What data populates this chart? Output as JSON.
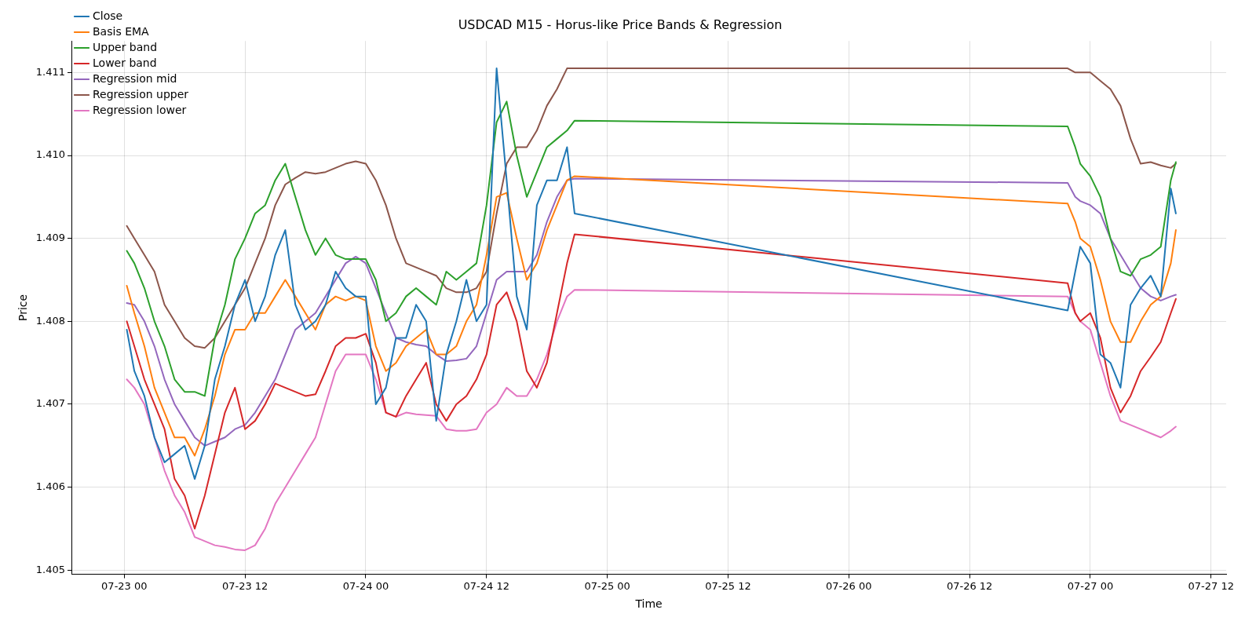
{
  "chart_data": {
    "type": "line",
    "title": "USDCAD M15 - Horus-like Price Bands & Regression",
    "xlabel": "Time",
    "ylabel": "Price",
    "x": [
      "--07-23T00:15",
      "--07-23T01:00",
      "--07-23T02:00",
      "--07-23T03:00",
      "--07-23T04:00",
      "--07-23T05:00",
      "--07-23T06:00",
      "--07-23T07:00",
      "--07-23T08:00",
      "--07-23T09:00",
      "--07-23T10:00",
      "--07-23T11:00",
      "--07-23T12:00",
      "--07-23T13:00",
      "--07-23T14:00",
      "--07-23T15:00",
      "--07-23T16:00",
      "--07-23T17:00",
      "--07-23T18:00",
      "--07-23T19:00",
      "--07-23T20:00",
      "--07-23T21:00",
      "--07-23T22:00",
      "--07-23T23:00",
      "--07-24T00:00",
      "--07-24T01:00",
      "--07-24T02:00",
      "--07-24T03:00",
      "--07-24T04:00",
      "--07-24T05:00",
      "--07-24T06:00",
      "--07-24T07:00",
      "--07-24T08:00",
      "--07-24T09:00",
      "--07-24T10:00",
      "--07-24T11:00",
      "--07-24T12:00",
      "--07-24T13:00",
      "--07-24T14:00",
      "--07-24T15:00",
      "--07-24T16:00",
      "--07-24T17:00",
      "--07-24T18:00",
      "--07-24T19:00",
      "--07-24T20:00",
      "--07-24T20:45",
      "--07-26T21:45",
      "--07-26T22:30",
      "--07-26T23:00",
      "--07-27T00:00",
      "--07-27T01:00",
      "--07-27T02:00",
      "--07-27T03:00",
      "--07-27T04:00",
      "--07-27T05:00",
      "--07-27T06:00",
      "--07-27T07:00",
      "--07-27T08:00",
      "--07-27T08:30"
    ],
    "series": [
      {
        "name": "Close",
        "color": "#1f77b4",
        "values": [
          1.4079,
          1.4074,
          1.4071,
          1.4066,
          1.4063,
          1.4064,
          1.4065,
          1.4061,
          1.4065,
          1.4073,
          1.4077,
          1.4082,
          1.4085,
          1.408,
          1.4083,
          1.4088,
          1.4091,
          1.4082,
          1.4079,
          1.408,
          1.4082,
          1.4086,
          1.4084,
          1.4083,
          1.4083,
          1.407,
          1.4072,
          1.4078,
          1.4078,
          1.4082,
          1.408,
          1.4068,
          1.4076,
          1.408,
          1.4085,
          1.408,
          1.4082,
          1.41105,
          1.4097,
          1.4083,
          1.4079,
          1.4094,
          1.4097,
          1.4097,
          1.4101,
          1.4093,
          1.40813,
          1.4086,
          1.4089,
          1.4087,
          1.4076,
          1.4075,
          1.4072,
          1.4082,
          1.4084,
          1.40855,
          1.4083,
          1.4096,
          1.4093
        ]
      },
      {
        "name": "Basis EMA",
        "color": "#ff7f0e",
        "values": [
          1.40843,
          1.4081,
          1.4077,
          1.4072,
          1.4069,
          1.4066,
          1.4066,
          1.40638,
          1.4067,
          1.4071,
          1.4076,
          1.4079,
          1.4079,
          1.4081,
          1.4081,
          1.4083,
          1.4085,
          1.4083,
          1.4081,
          1.4079,
          1.4082,
          1.4083,
          1.40825,
          1.4083,
          1.40825,
          1.4077,
          1.4074,
          1.4075,
          1.4077,
          1.4078,
          1.4079,
          1.4076,
          1.4076,
          1.4077,
          1.408,
          1.4082,
          1.4088,
          1.4095,
          1.40955,
          1.409,
          1.4085,
          1.4087,
          1.4091,
          1.4094,
          1.4097,
          1.40975,
          1.40942,
          1.4092,
          1.409,
          1.4089,
          1.4085,
          1.408,
          1.40775,
          1.40775,
          1.408,
          1.4082,
          1.4083,
          1.4087,
          1.4091
        ]
      },
      {
        "name": "Upper band",
        "color": "#2ca02c",
        "values": [
          1.40885,
          1.4087,
          1.4084,
          1.408,
          1.4077,
          1.4073,
          1.40715,
          1.40715,
          1.4071,
          1.4078,
          1.4082,
          1.40875,
          1.409,
          1.4093,
          1.4094,
          1.4097,
          1.4099,
          1.4095,
          1.4091,
          1.4088,
          1.409,
          1.4088,
          1.40875,
          1.40875,
          1.40875,
          1.4085,
          1.408,
          1.4081,
          1.4083,
          1.4084,
          1.4083,
          1.4082,
          1.4086,
          1.4085,
          1.4086,
          1.4087,
          1.4094,
          1.4104,
          1.41065,
          1.41,
          1.4095,
          1.4098,
          1.4101,
          1.4102,
          1.4103,
          1.41042,
          1.41035,
          1.4101,
          1.4099,
          1.40975,
          1.4095,
          1.409,
          1.4086,
          1.40855,
          1.40875,
          1.4088,
          1.4089,
          1.4097,
          1.40992
        ]
      },
      {
        "name": "Lower band",
        "color": "#d62728",
        "values": [
          1.408,
          1.4077,
          1.4073,
          1.407,
          1.4067,
          1.4061,
          1.4059,
          1.4055,
          1.4059,
          1.4064,
          1.4069,
          1.4072,
          1.4067,
          1.4068,
          1.407,
          1.40725,
          1.4072,
          1.40715,
          1.4071,
          1.40712,
          1.4074,
          1.4077,
          1.4078,
          1.4078,
          1.40785,
          1.4075,
          1.4069,
          1.40685,
          1.4071,
          1.4073,
          1.4075,
          1.407,
          1.4068,
          1.407,
          1.4071,
          1.4073,
          1.4076,
          1.4082,
          1.40835,
          1.408,
          1.4074,
          1.4072,
          1.4075,
          1.4081,
          1.4087,
          1.40905,
          1.40846,
          1.4081,
          1.408,
          1.4081,
          1.4078,
          1.4072,
          1.4069,
          1.4071,
          1.4074,
          1.40757,
          1.40775,
          1.4081,
          1.40827
        ]
      },
      {
        "name": "Regression mid",
        "color": "#9467bd",
        "values": [
          1.40822,
          1.4082,
          1.408,
          1.4077,
          1.4073,
          1.407,
          1.4068,
          1.4066,
          1.4065,
          1.40655,
          1.4066,
          1.4067,
          1.40675,
          1.4069,
          1.4071,
          1.4073,
          1.4076,
          1.4079,
          1.408,
          1.4081,
          1.4083,
          1.4085,
          1.4087,
          1.40878,
          1.4087,
          1.4084,
          1.4081,
          1.4078,
          1.40775,
          1.40772,
          1.4077,
          1.4076,
          1.40752,
          1.40753,
          1.40755,
          1.4077,
          1.4081,
          1.4085,
          1.4086,
          1.4086,
          1.4086,
          1.4088,
          1.4092,
          1.4095,
          1.4097,
          1.40972,
          1.40967,
          1.4095,
          1.40945,
          1.4094,
          1.4093,
          1.409,
          1.4088,
          1.4086,
          1.4084,
          1.4083,
          1.40825,
          1.4083,
          1.40832
        ]
      },
      {
        "name": "Regression upper",
        "color": "#8c564b",
        "values": [
          1.40915,
          1.409,
          1.4088,
          1.4086,
          1.4082,
          1.408,
          1.4078,
          1.4077,
          1.40768,
          1.4078,
          1.408,
          1.4082,
          1.4084,
          1.4087,
          1.409,
          1.4094,
          1.40965,
          1.40973,
          1.4098,
          1.40978,
          1.4098,
          1.40985,
          1.4099,
          1.40993,
          1.4099,
          1.4097,
          1.4094,
          1.409,
          1.4087,
          1.40865,
          1.4086,
          1.40855,
          1.4084,
          1.40835,
          1.40835,
          1.4084,
          1.4086,
          1.4093,
          1.4099,
          1.4101,
          1.4101,
          1.4103,
          1.4106,
          1.4108,
          1.41105,
          1.41105,
          1.41105,
          1.411,
          1.411,
          1.411,
          1.4109,
          1.4108,
          1.4106,
          1.4102,
          1.4099,
          1.40992,
          1.40988,
          1.40985,
          1.4099
        ]
      },
      {
        "name": "Regression lower",
        "color": "#e377c2",
        "values": [
          1.4073,
          1.4072,
          1.407,
          1.4066,
          1.4062,
          1.4059,
          1.4057,
          1.4054,
          1.40535,
          1.4053,
          1.40528,
          1.40525,
          1.40524,
          1.4053,
          1.4055,
          1.4058,
          1.406,
          1.4062,
          1.4064,
          1.4066,
          1.407,
          1.4074,
          1.4076,
          1.4076,
          1.4076,
          1.4073,
          1.4069,
          1.40685,
          1.4069,
          1.40688,
          1.40687,
          1.40686,
          1.4067,
          1.40668,
          1.40668,
          1.4067,
          1.4069,
          1.407,
          1.4072,
          1.4071,
          1.4071,
          1.4073,
          1.4076,
          1.408,
          1.4083,
          1.40838,
          1.4083,
          1.4081,
          1.408,
          1.4079,
          1.4075,
          1.4071,
          1.4068,
          1.40675,
          1.4067,
          1.40665,
          1.4066,
          1.40668,
          1.40673
        ]
      }
    ],
    "xlim": [
      "--07-22T18:45",
      "--07-27T13:30"
    ],
    "xticks": [
      {
        "value": "--07-23T00:00",
        "label": "07-23 00"
      },
      {
        "value": "--07-23T12:00",
        "label": "07-23 12"
      },
      {
        "value": "--07-24T00:00",
        "label": "07-24 00"
      },
      {
        "value": "--07-24T12:00",
        "label": "07-24 12"
      },
      {
        "value": "--07-25T00:00",
        "label": "07-25 00"
      },
      {
        "value": "--07-25T12:00",
        "label": "07-25 12"
      },
      {
        "value": "--07-26T00:00",
        "label": "07-26 00"
      },
      {
        "value": "--07-26T12:00",
        "label": "07-26 12"
      },
      {
        "value": "--07-27T00:00",
        "label": "07-27 00"
      },
      {
        "value": "--07-27T12:00",
        "label": "07-27 12"
      }
    ],
    "ylim": [
      1.40495,
      1.41138
    ],
    "yticks": [
      1.405,
      1.406,
      1.407,
      1.408,
      1.409,
      {
        "value": 1.41,
        "label": "1.410"
      },
      1.411
    ],
    "grid": true,
    "legend": "top left",
    "line_style": "solid",
    "marker": "none"
  }
}
